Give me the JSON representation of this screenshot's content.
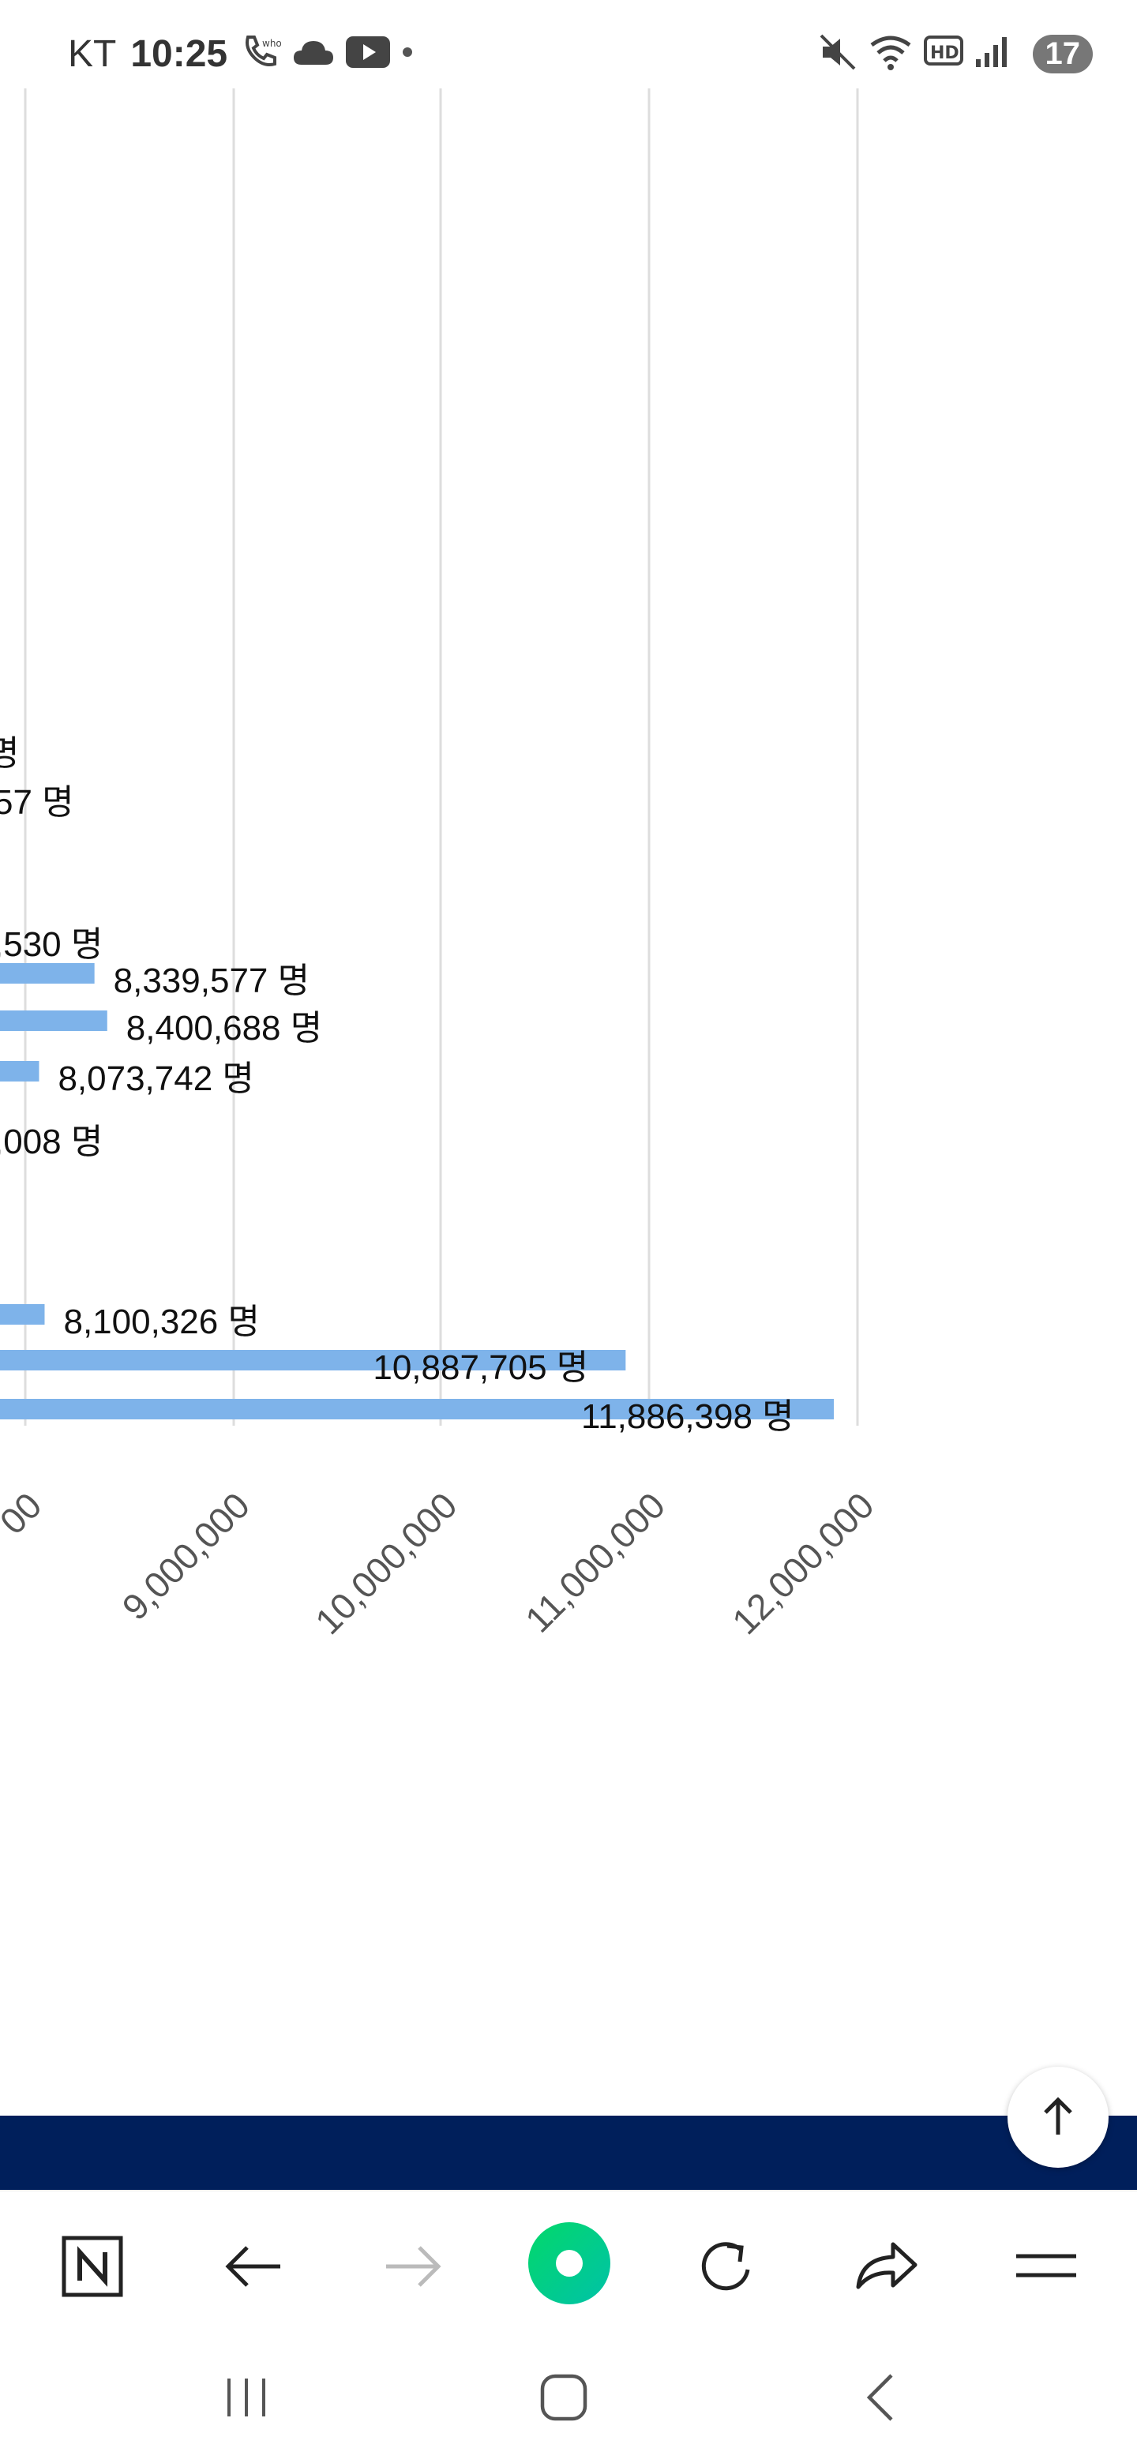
{
  "status_bar": {
    "carrier": "KT",
    "time": "10:25",
    "notification_badge": "17"
  },
  "chart_data": {
    "type": "bar",
    "orientation": "horizontal",
    "x_ticks": [
      "00",
      "9,000,000",
      "10,000,000",
      "11,000,000",
      "12,000,000"
    ],
    "bar_color": "#7eb3ea",
    "partially_visible_labels": [
      "명",
      "57 명",
      ",530 명",
      ",008 명"
    ],
    "bars": [
      {
        "value": 8339577,
        "label": "8,339,577 명"
      },
      {
        "value": 8400688,
        "label": "8,400,688 명"
      },
      {
        "value": 8073742,
        "label": "8,073,742 명"
      },
      {
        "value": 8100326,
        "label": "8,100,326 명"
      },
      {
        "value": 10887705,
        "label": "10,887,705 명"
      },
      {
        "value": 11886398,
        "label": "11,886,398 명"
      }
    ]
  },
  "toolbar": {
    "icons": [
      "naver-icon",
      "back-arrow-icon",
      "forward-arrow-icon",
      "green-dot-icon",
      "refresh-icon",
      "share-icon",
      "menu-icon"
    ]
  },
  "colors": {
    "banner": "#001f5b",
    "accent_green": "#03c75a",
    "bar": "#7eb3ea"
  }
}
